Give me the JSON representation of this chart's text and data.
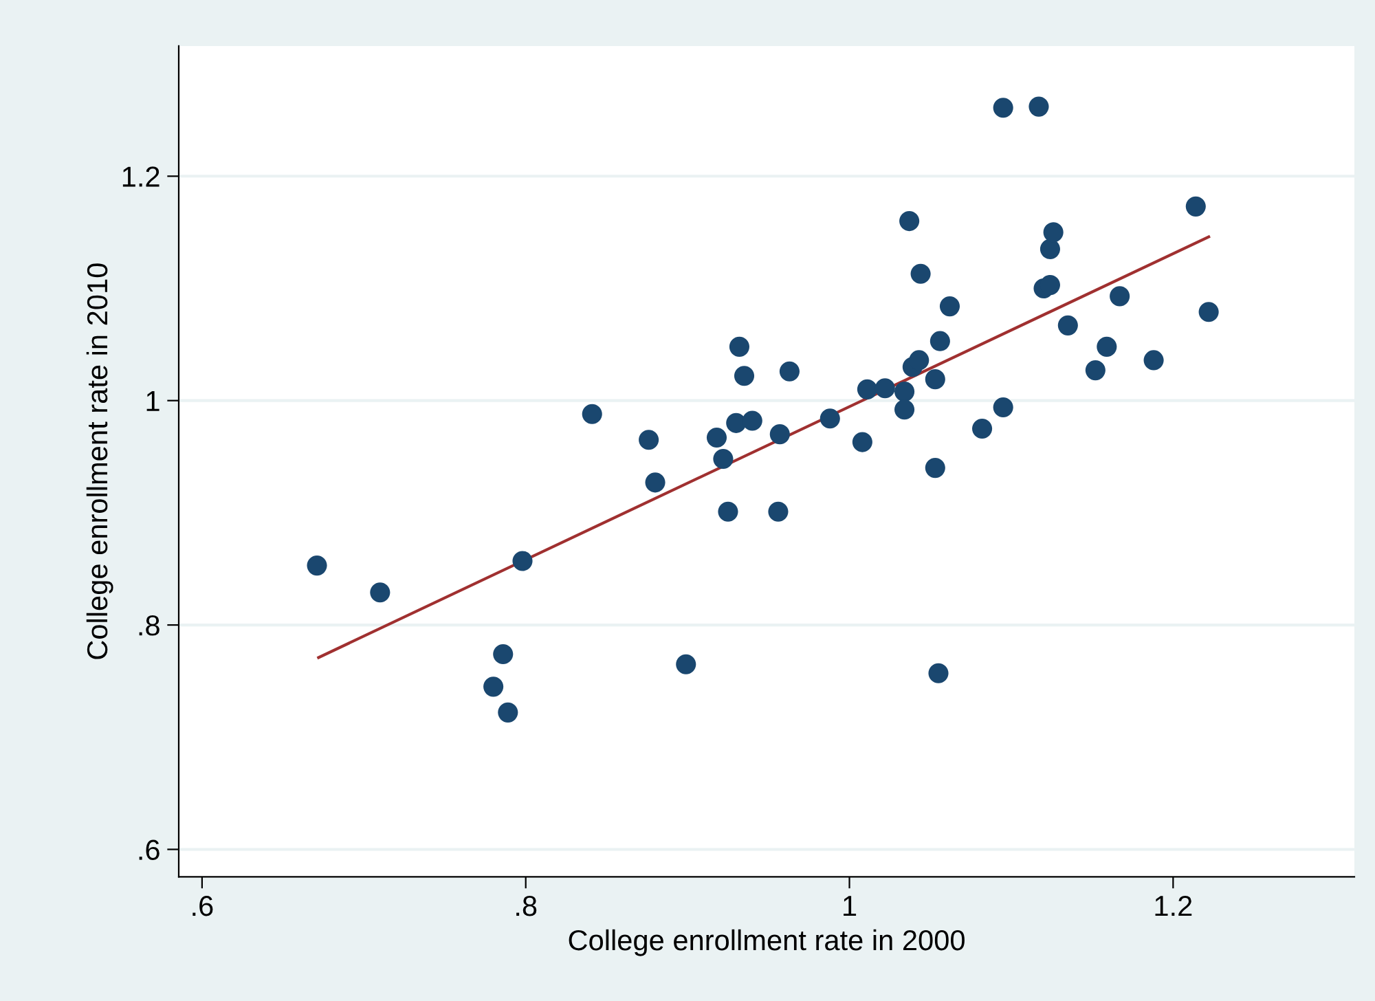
{
  "chart_data": {
    "type": "scatter",
    "xlabel": "College enrollment rate in 2000",
    "ylabel": "College enrollment rate in 2010",
    "xlim": [
      0.5856,
      1.312
    ],
    "ylim": [
      0.5755,
      1.316
    ],
    "xticks": [
      {
        "value": 0.6,
        "label": ".6"
      },
      {
        "value": 0.8,
        "label": ".8"
      },
      1,
      1.2
    ],
    "yticks": [
      {
        "value": 0.6,
        "label": ".6"
      },
      {
        "value": 0.8,
        "label": ".8"
      },
      1,
      1.2
    ],
    "grid": "y",
    "series": [
      {
        "marker": "circle",
        "color": "#1a476f",
        "x": [
          0.671,
          0.71,
          0.798,
          0.78,
          0.786,
          0.789,
          0.841,
          0.876,
          0.88,
          0.899,
          0.918,
          0.922,
          0.925,
          0.932,
          0.93,
          0.935,
          0.94,
          0.957,
          0.956,
          0.963,
          0.988,
          1.008,
          1.011,
          1.022,
          1.034,
          1.034,
          1.037,
          1.039,
          1.043,
          1.044,
          1.053,
          1.056,
          1.053,
          1.055,
          1.062,
          1.082,
          1.095,
          1.095,
          1.117,
          1.12,
          1.124,
          1.124,
          1.126,
          1.135,
          1.152,
          1.159,
          1.167,
          1.188,
          1.214,
          1.222
        ],
        "values": [
          0.853,
          0.829,
          0.857,
          0.745,
          0.774,
          0.722,
          0.988,
          0.965,
          0.927,
          0.765,
          0.967,
          0.948,
          0.901,
          1.048,
          0.98,
          1.022,
          0.982,
          0.97,
          0.901,
          1.026,
          0.984,
          0.963,
          1.01,
          1.011,
          1.008,
          0.992,
          1.16,
          1.03,
          1.036,
          1.113,
          1.019,
          1.053,
          0.94,
          0.757,
          1.084,
          0.975,
          1.261,
          0.994,
          1.262,
          1.1,
          1.103,
          1.135,
          1.15,
          1.067,
          1.027,
          1.048,
          1.093,
          1.036,
          1.173,
          1.079
        ]
      },
      {
        "type": "line",
        "marker": "none",
        "color": "#a03030",
        "x": [
          0.672,
          1.222
        ],
        "values": [
          0.771,
          1.146
        ]
      }
    ]
  }
}
